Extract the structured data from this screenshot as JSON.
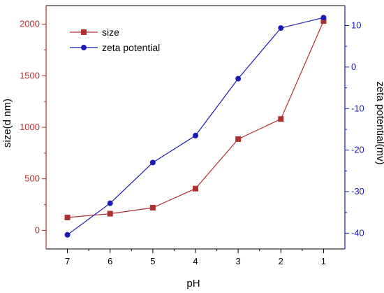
{
  "chart_data": {
    "type": "line",
    "title": "",
    "xlabel": "pH",
    "x": [
      7,
      6,
      5,
      4,
      3,
      2,
      1
    ],
    "xlim": [
      7.5,
      0.5
    ],
    "xticks": [
      "7",
      "6",
      "5",
      "4",
      "3",
      "2",
      "1"
    ],
    "left_axis": {
      "label": "size(d nm)",
      "ylim": [
        -180,
        2180
      ],
      "ticks": [
        "0",
        "500",
        "1000",
        "1500",
        "2000"
      ],
      "color": "#b03030"
    },
    "right_axis": {
      "label": "zeta potential(mv)",
      "ylim": [
        -43.8,
        14.8
      ],
      "ticks": [
        "-40",
        "-30",
        "-20",
        "-10",
        "0",
        "10"
      ],
      "color": "#1a1ab5"
    },
    "series": [
      {
        "name": "size",
        "axis": "left",
        "marker": "square",
        "color": "#b03030",
        "values": [
          125,
          162,
          220,
          405,
          885,
          1080,
          2030
        ]
      },
      {
        "name": "zeta potential",
        "axis": "right",
        "marker": "circle",
        "color": "#1a1ab5",
        "values": [
          -40.4,
          -32.8,
          -23.0,
          -16.5,
          -2.8,
          9.4,
          11.9
        ]
      }
    ],
    "legend": {
      "position": "top-left"
    },
    "grid": false
  }
}
